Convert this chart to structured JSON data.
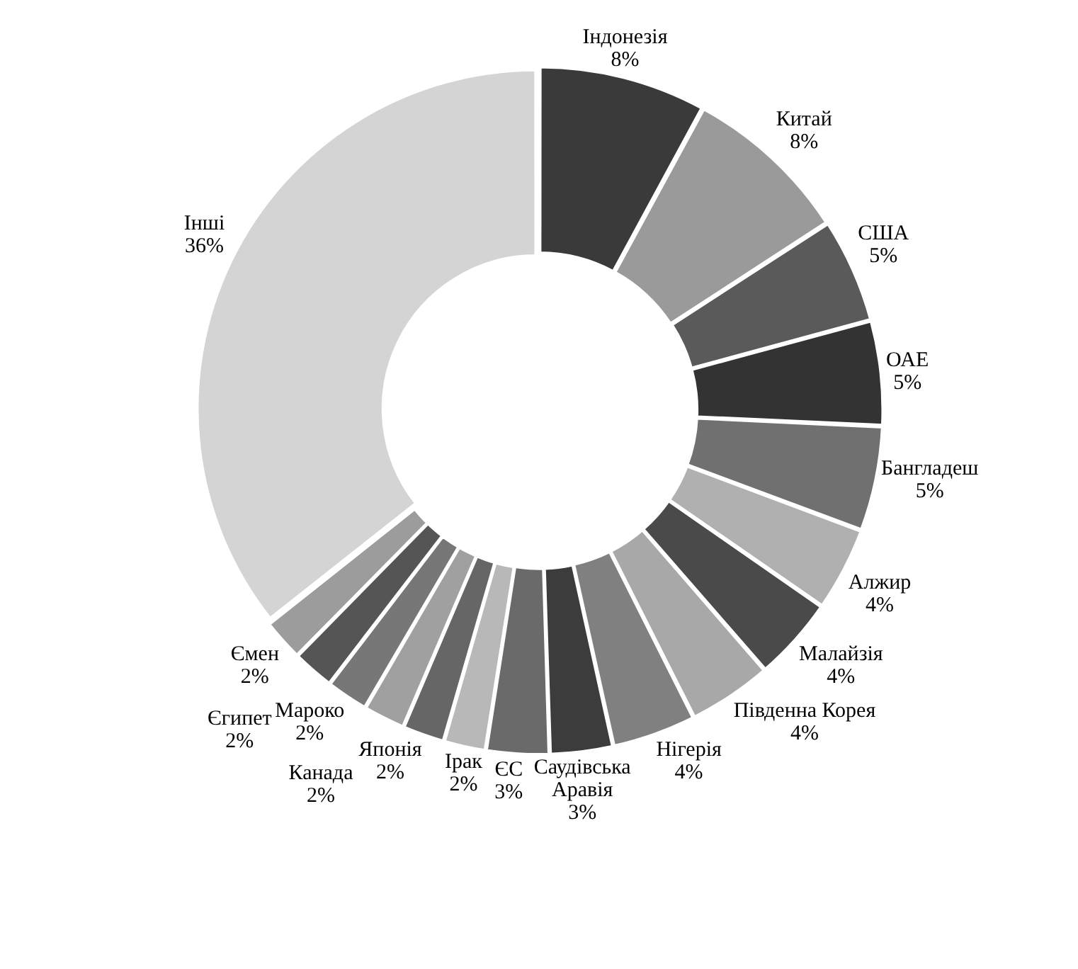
{
  "chart_data": {
    "type": "donut",
    "categories": [
      "Індонезія",
      "Китай",
      "США",
      "ОАЕ",
      "Бангладеш",
      "Алжир",
      "Малайзія",
      "Південна Корея",
      "Нігерія",
      "Саудівська Аравія",
      "ЄС",
      "Ірак",
      "Японія",
      "Канада",
      "Мароко",
      "Єгипет",
      "Ємен",
      "Інші"
    ],
    "values": [
      8,
      8,
      5,
      5,
      5,
      4,
      4,
      4,
      4,
      3,
      3,
      2,
      2,
      2,
      2,
      2,
      2,
      36
    ],
    "value_labels": [
      "8%",
      "8%",
      "5%",
      "5%",
      "5%",
      "4%",
      "4%",
      "4%",
      "4%",
      "3%",
      "3%",
      "2%",
      "2%",
      "2%",
      "2%",
      "2%",
      "2%",
      "36%"
    ],
    "colors": [
      "#3a3a3a",
      "#9a9a9a",
      "#5a5a5a",
      "#333333",
      "#707070",
      "#b0b0b0",
      "#4a4a4a",
      "#a8a8a8",
      "#808080",
      "#3c3c3c",
      "#6a6a6a",
      "#b8b8b8",
      "#666666",
      "#a0a0a0",
      "#777777",
      "#555555",
      "#9c9c9c",
      "#d4d4d4"
    ],
    "legend": false
  }
}
